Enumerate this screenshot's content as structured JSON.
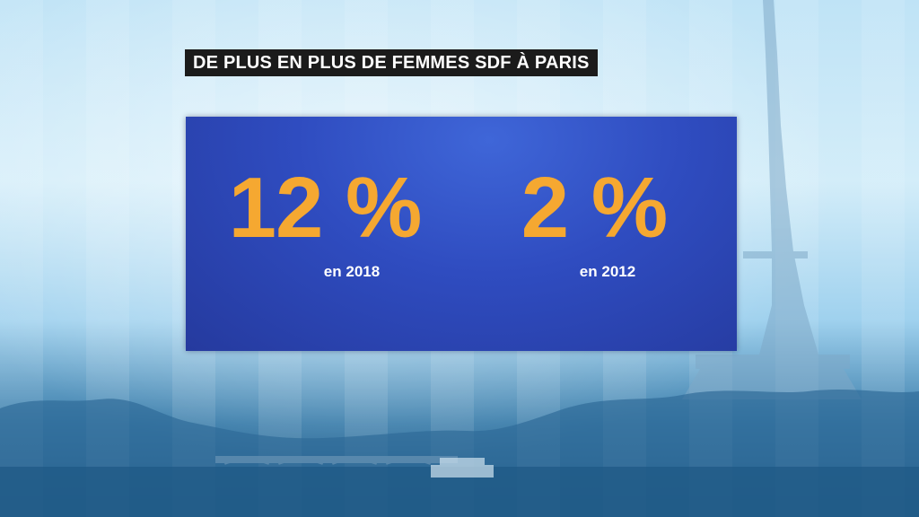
{
  "headline": "DE PLUS EN PLUS DE FEMMES SDF À PARIS",
  "stats": [
    {
      "value": "12 %",
      "label": "en 2018"
    },
    {
      "value": "2 %",
      "label": "en 2012"
    }
  ],
  "colors": {
    "panel": "#2f4cc0",
    "value": "#f5a831",
    "headline_bg": "#1b1b1b"
  }
}
